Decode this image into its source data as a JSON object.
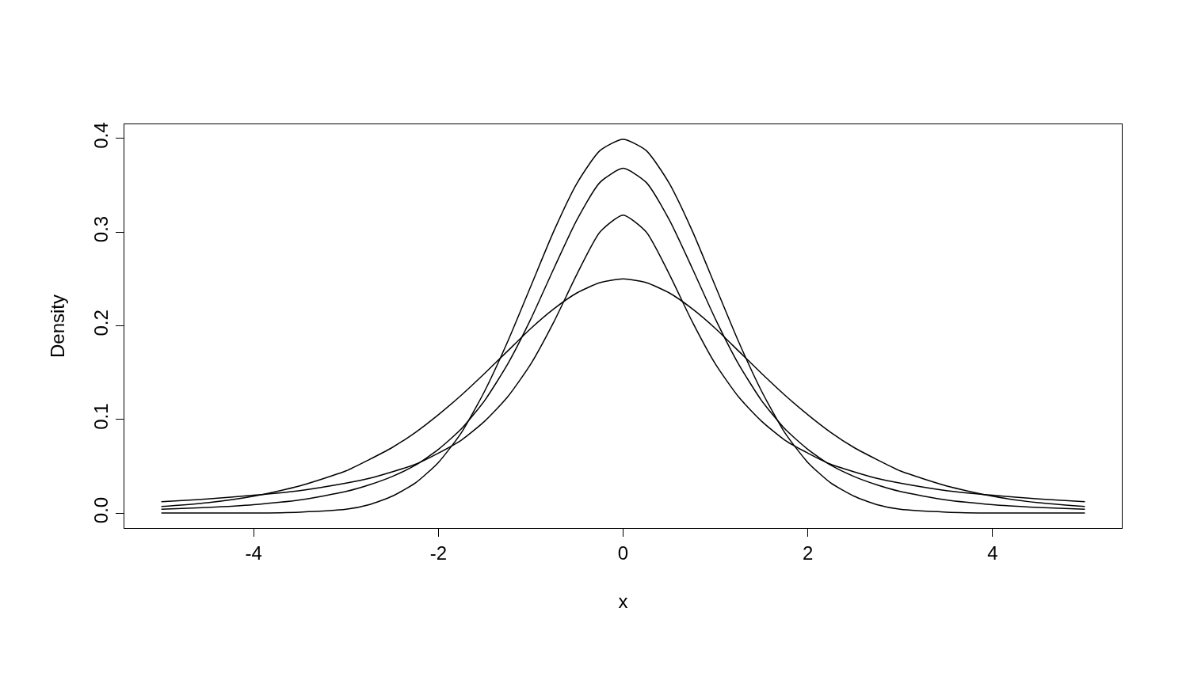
{
  "chart_data": {
    "type": "line",
    "xlabel": "x",
    "ylabel": "Density",
    "line_style": "solid",
    "marker": "none",
    "x": [
      -5,
      -4.5,
      -4,
      -3.5,
      -3,
      -2.75,
      -2.5,
      -2.25,
      -2,
      -1.75,
      -1.5,
      -1.25,
      -1,
      -0.75,
      -0.5,
      -0.25,
      0,
      0.25,
      0.5,
      0.75,
      1,
      1.25,
      1.5,
      1.75,
      2,
      2.25,
      2.5,
      2.75,
      3,
      3.5,
      4,
      4.5,
      5
    ],
    "series": [
      {
        "color": "#000000",
        "values": [
          0,
          0,
          0,
          0.001,
          0.004,
          0.009,
          0.018,
          0.032,
          0.054,
          0.086,
          0.13,
          0.183,
          0.242,
          0.301,
          0.352,
          0.387,
          0.399,
          0.387,
          0.352,
          0.301,
          0.242,
          0.183,
          0.13,
          0.086,
          0.054,
          0.032,
          0.018,
          0.009,
          0.004,
          0.001,
          0,
          0,
          0
        ]
      },
      {
        "color": "#000000",
        "values": [
          0.004,
          0.006,
          0.009,
          0.014,
          0.023,
          0.03,
          0.039,
          0.051,
          0.068,
          0.09,
          0.12,
          0.159,
          0.207,
          0.261,
          0.313,
          0.353,
          0.368,
          0.353,
          0.313,
          0.261,
          0.207,
          0.159,
          0.12,
          0.09,
          0.068,
          0.051,
          0.039,
          0.03,
          0.023,
          0.014,
          0.009,
          0.006,
          0.004
        ]
      },
      {
        "color": "#000000",
        "values": [
          0.012,
          0.015,
          0.019,
          0.024,
          0.032,
          0.037,
          0.044,
          0.052,
          0.064,
          0.078,
          0.098,
          0.124,
          0.159,
          0.204,
          0.255,
          0.3,
          0.318,
          0.3,
          0.255,
          0.204,
          0.159,
          0.124,
          0.098,
          0.078,
          0.064,
          0.052,
          0.044,
          0.037,
          0.032,
          0.024,
          0.019,
          0.015,
          0.012
        ]
      },
      {
        "color": "#000000",
        "values": [
          0.007,
          0.011,
          0.018,
          0.029,
          0.045,
          0.057,
          0.07,
          0.086,
          0.105,
          0.126,
          0.149,
          0.173,
          0.197,
          0.218,
          0.235,
          0.246,
          0.25,
          0.246,
          0.235,
          0.218,
          0.197,
          0.173,
          0.149,
          0.126,
          0.105,
          0.086,
          0.07,
          0.057,
          0.045,
          0.029,
          0.018,
          0.011,
          0.007
        ]
      }
    ],
    "xlim": [
      -5.4,
      5.4
    ],
    "ylim": [
      -0.016,
      0.415
    ],
    "xticks": [
      -4,
      -2,
      0,
      2,
      4
    ],
    "yticks": [
      {
        "value": 0,
        "label": "0.0"
      },
      {
        "value": 0.1,
        "label": "0.1"
      },
      {
        "value": 0.2,
        "label": "0.2"
      },
      {
        "value": 0.3,
        "label": "0.3"
      },
      {
        "value": 0.4,
        "label": "0.4"
      }
    ]
  }
}
